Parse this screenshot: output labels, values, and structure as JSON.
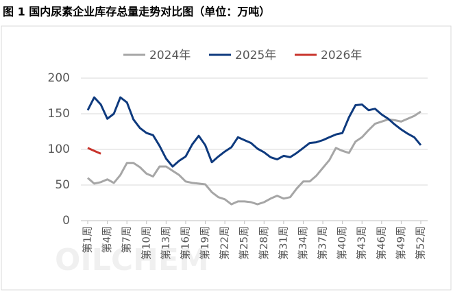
{
  "chart_data": {
    "type": "line",
    "title": "图 1 国内尿素企业库存总量走势对比图（单位：万吨）",
    "watermark": "OILCHEM",
    "categories": [
      "第1周",
      null,
      null,
      "第4周",
      null,
      null,
      "第7周",
      null,
      null,
      "第10周",
      null,
      null,
      "第13周",
      null,
      null,
      "第16周",
      null,
      null,
      "第19周",
      null,
      null,
      "第22周",
      null,
      null,
      "第25周",
      null,
      null,
      "第28周",
      null,
      null,
      "第31周",
      null,
      null,
      "第34周",
      null,
      null,
      "第37周",
      null,
      null,
      "第40周",
      null,
      null,
      "第43周",
      null,
      null,
      "第46周",
      null,
      null,
      "第49周",
      null,
      null,
      "第52周"
    ],
    "series": [
      {
        "name": "2024年",
        "color": "#a6a6a6",
        "values": [
          60,
          52,
          54,
          58,
          53,
          64,
          81,
          81,
          75,
          66,
          62,
          76,
          76,
          70,
          64,
          55,
          53,
          52,
          51,
          40,
          33,
          30,
          23,
          27,
          27,
          26,
          23,
          26,
          31,
          35,
          31,
          33,
          45,
          55,
          55,
          63,
          74,
          85,
          102,
          98,
          95,
          111,
          117,
          127,
          136,
          139,
          142,
          141,
          139,
          143,
          147,
          153
        ]
      },
      {
        "name": "2025年",
        "color": "#0e3a7e",
        "values": [
          155,
          173,
          163,
          143,
          150,
          173,
          166,
          142,
          130,
          123,
          120,
          105,
          87,
          76,
          84,
          90,
          107,
          119,
          106,
          82,
          90,
          97,
          103,
          117,
          113,
          109,
          101,
          96,
          89,
          86,
          91,
          89,
          95,
          102,
          109,
          110,
          113,
          117,
          121,
          123,
          145,
          162,
          163,
          155,
          157,
          149,
          143,
          135,
          128,
          122,
          117,
          106
        ]
      },
      {
        "name": "2026年",
        "color": "#c8332b",
        "values": [
          102,
          98,
          94,
          null,
          null,
          null,
          null,
          null,
          null,
          null,
          null,
          null,
          null,
          null,
          null,
          null,
          null,
          null,
          null,
          null,
          null,
          null,
          null,
          null,
          null,
          null,
          null,
          null,
          null,
          null,
          null,
          null,
          null,
          null,
          null,
          null,
          null,
          null,
          null,
          null,
          null,
          null,
          null,
          null,
          null,
          null,
          null,
          null,
          null,
          null,
          null,
          null
        ]
      }
    ],
    "ylim": [
      0,
      200
    ],
    "yticks": [
      0,
      50,
      100,
      150,
      200
    ],
    "grid": true,
    "legend": "top"
  }
}
